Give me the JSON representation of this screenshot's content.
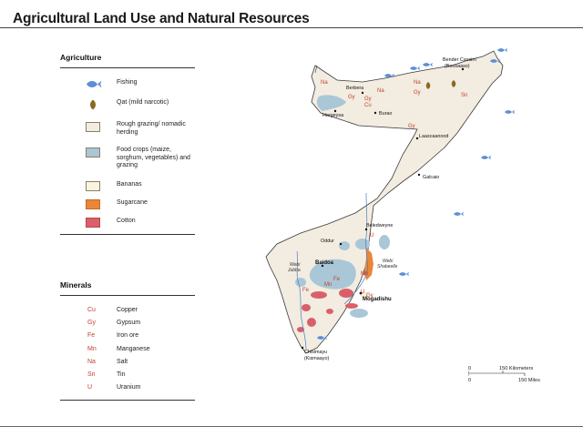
{
  "title": "Agricultural Land Use and Natural Resources",
  "legend": {
    "agriculture_heading": "Agriculture",
    "agriculture_items": [
      {
        "label": "Fishing",
        "icon": "fish-icon",
        "color": "#5b8fd6"
      },
      {
        "label": "Qat (mild narcotic)",
        "icon": "qat-leaf-icon",
        "color": "#8a6a1f"
      },
      {
        "label": "Rough grazing/ nomadic herding",
        "icon": "rough-grazing-swatch",
        "color": "#f3ece0"
      },
      {
        "label": "Food crops (maize, sorghum, vegetables) and grazing",
        "icon": "food-crops-swatch",
        "color": "#a9c7d6"
      },
      {
        "label": "Bananas",
        "icon": "bananas-swatch",
        "color": "#fbf5dd"
      },
      {
        "label": "Sugarcane",
        "icon": "sugarcane-swatch",
        "color": "#e8873a"
      },
      {
        "label": "Cotton",
        "icon": "cotton-swatch",
        "color": "#d9606a"
      }
    ],
    "minerals_heading": "Minerals",
    "minerals_items": [
      {
        "symbol": "Cu",
        "name": "Copper"
      },
      {
        "symbol": "Gy",
        "name": "Gypsum"
      },
      {
        "symbol": "Fe",
        "name": "Iron ore"
      },
      {
        "symbol": "Mn",
        "name": "Manganese"
      },
      {
        "symbol": "Na",
        "name": "Salt"
      },
      {
        "symbol": "Sn",
        "name": "Tin"
      },
      {
        "symbol": "U",
        "name": "Uranium"
      }
    ]
  },
  "places": {
    "bender_cassim": "Bender Cassim",
    "boosaaso": "(Boosaaso)",
    "berbera": "Berbera",
    "hargeysa": "Hargeysa",
    "burao": "Burao",
    "laascaanood": "Laascaanood",
    "galcaio": "Galcaio",
    "beledweyne": "Beledweyne",
    "oddur": "Oddur",
    "baidoa": "Baidoa",
    "mogadishu": "Mogadishu",
    "chisimayu": "Chisimayu",
    "kismaayo": "(Kismaayo)"
  },
  "rivers": {
    "webi_jubba_1": "Webi",
    "webi_jubba_2": "Jubba",
    "webi_shabeelle_1": "Webi",
    "webi_shabeelle_2": "Shabeelle"
  },
  "mineral_labels": {
    "na_west": "Na",
    "gy_berbera": "Gy",
    "cu_berbera": "Cu",
    "na_north": "Na",
    "gy_north": "Gy",
    "na_north2": "Na",
    "gy_north2": "Gy",
    "sn_northeast": "Sn",
    "gy_central": "Gy",
    "u_beledweyne": "U",
    "mn_shabeelle": "Mn",
    "fe_baidoa": "Fe",
    "mn_baidoa": "Mn",
    "fe_south": "Fe",
    "u_mogadishu": "U",
    "gy_mogadishu": "Gy"
  },
  "scale": {
    "zero_top": "0",
    "km_label": "150 Kilometers",
    "zero_bottom": "0",
    "mi_label": "150 Miles"
  },
  "colors": {
    "land": "#f3ece0",
    "food_crops": "#a9c7d6",
    "cotton": "#d9606a",
    "sugarcane": "#e8873a",
    "fish": "#5b8fd6",
    "mineral_text": "#c2412f"
  }
}
